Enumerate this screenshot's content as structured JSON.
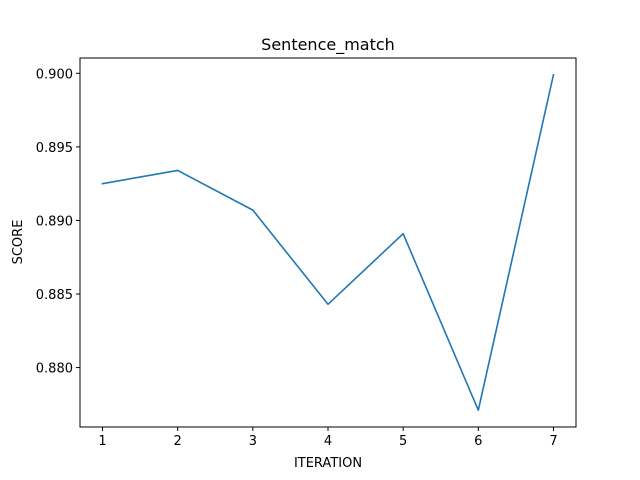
{
  "chart_data": {
    "type": "line",
    "title": "Sentence_match",
    "xlabel": "ITERATION",
    "ylabel": "SCORE",
    "x": [
      1,
      2,
      3,
      4,
      5,
      6,
      7
    ],
    "series": [
      {
        "values": [
          0.8925,
          0.8934,
          0.8907,
          0.8843,
          0.8891,
          0.8771,
          0.8999
        ],
        "color": "#1f77b4"
      }
    ],
    "xticks": [
      "1",
      "2",
      "3",
      "4",
      "5",
      "6",
      "7"
    ],
    "yticks": [
      "0.880",
      "0.885",
      "0.890",
      "0.895",
      "0.900"
    ],
    "xlim": [
      0.7,
      7.3
    ],
    "ylim": [
      0.87596,
      0.90104
    ],
    "grid": false,
    "legend": "none"
  }
}
